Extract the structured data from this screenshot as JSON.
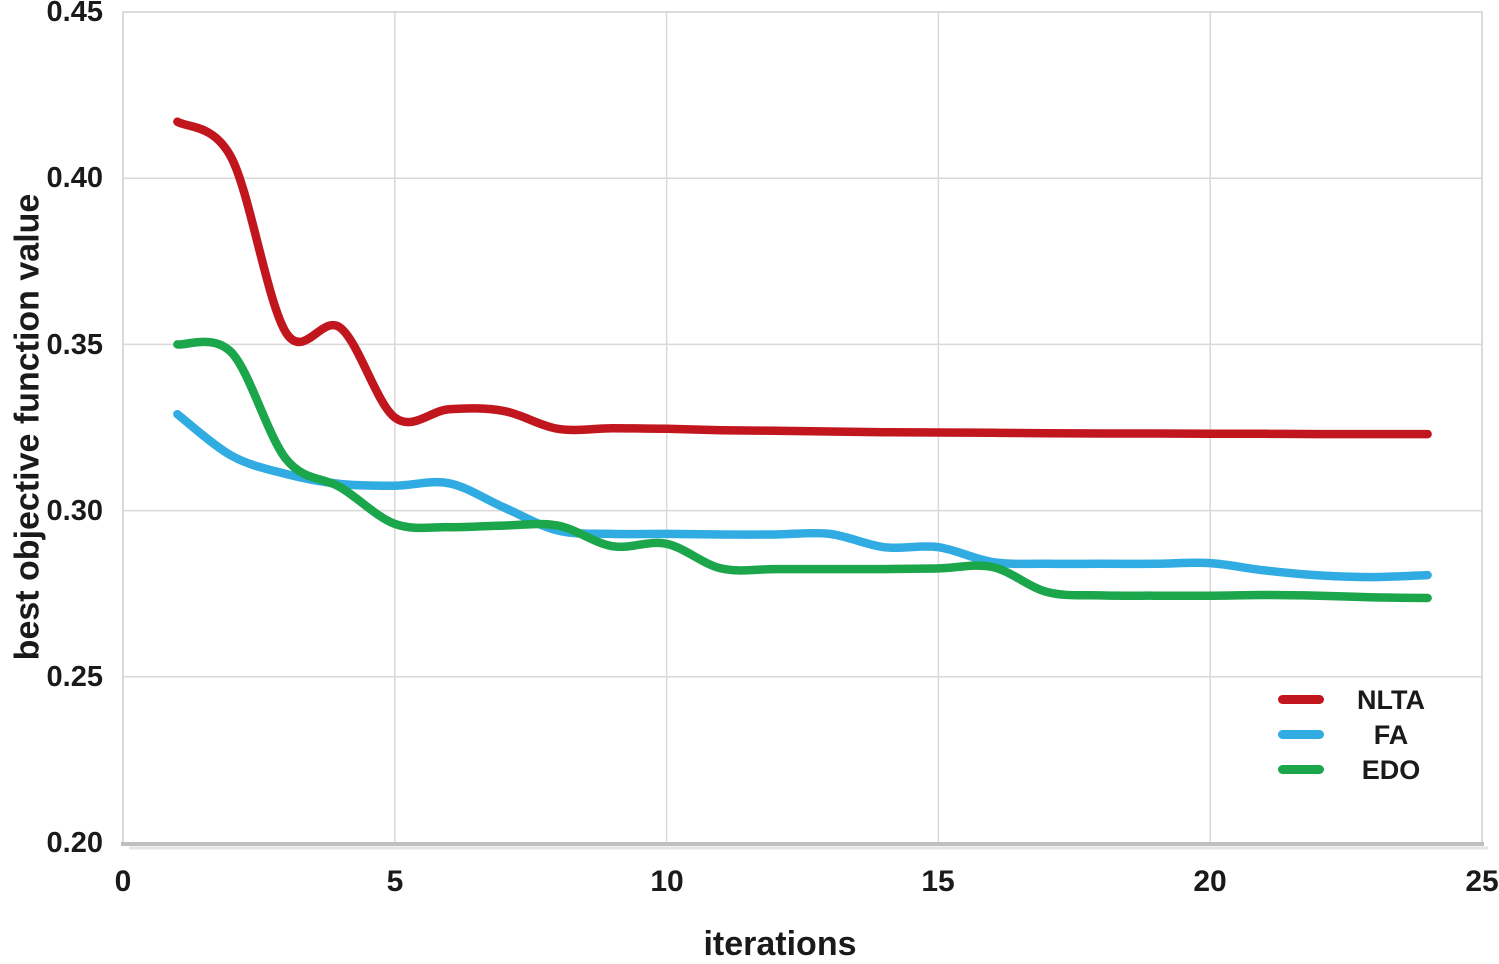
{
  "chart_data": {
    "type": "line",
    "title": "",
    "xlabel": "iterations",
    "ylabel": "best objective function value",
    "xlim": [
      0,
      25
    ],
    "ylim": [
      0.2,
      0.45
    ],
    "grid": true,
    "legend_position": "lower right",
    "x_ticks": [
      0,
      5,
      10,
      15,
      20,
      25
    ],
    "y_ticks": [
      0.2,
      0.25,
      0.3,
      0.35,
      0.4,
      0.45
    ],
    "x_tick_labels": [
      "0",
      "5",
      "10",
      "15",
      "20",
      "25"
    ],
    "y_tick_labels": [
      "0.20",
      "0.25",
      "0.30",
      "0.35",
      "0.40",
      "0.45"
    ],
    "x": [
      1,
      2,
      3,
      4,
      5,
      6,
      7,
      8,
      9,
      10,
      11,
      12,
      13,
      14,
      15,
      16,
      17,
      18,
      19,
      20,
      21,
      22,
      23,
      24
    ],
    "series": [
      {
        "name": "NLTA",
        "color": "#C1161E",
        "values": [
          0.417,
          0.406,
          0.3535,
          0.355,
          0.328,
          0.3305,
          0.33,
          0.3246,
          0.3248,
          0.3246,
          0.3242,
          0.324,
          0.3238,
          0.3236,
          0.3235,
          0.3234,
          0.3233,
          0.3232,
          0.3232,
          0.3231,
          0.3231,
          0.323,
          0.323,
          0.323
        ]
      },
      {
        "name": "FA",
        "color": "#31ACE3",
        "values": [
          0.329,
          0.3165,
          0.311,
          0.308,
          0.3075,
          0.3082,
          0.301,
          0.294,
          0.293,
          0.293,
          0.2928,
          0.2928,
          0.293,
          0.289,
          0.289,
          0.2845,
          0.284,
          0.284,
          0.284,
          0.2842,
          0.282,
          0.2805,
          0.28,
          0.2806
        ]
      },
      {
        "name": "EDO",
        "color": "#1CA64C",
        "values": [
          0.35,
          0.3475,
          0.3155,
          0.307,
          0.296,
          0.295,
          0.2955,
          0.2955,
          0.2893,
          0.29,
          0.2826,
          0.2824,
          0.2824,
          0.2824,
          0.2826,
          0.283,
          0.2755,
          0.2745,
          0.2744,
          0.2744,
          0.2746,
          0.2744,
          0.2739,
          0.2737
        ]
      }
    ]
  },
  "colors": {
    "background": "#FFFFFF",
    "grid": "#D9D9D9",
    "border": "#CFCFCF",
    "axis": "#BFBFBF",
    "axis_shadow": "#E4E4E4",
    "text": "#1A1A1A"
  }
}
